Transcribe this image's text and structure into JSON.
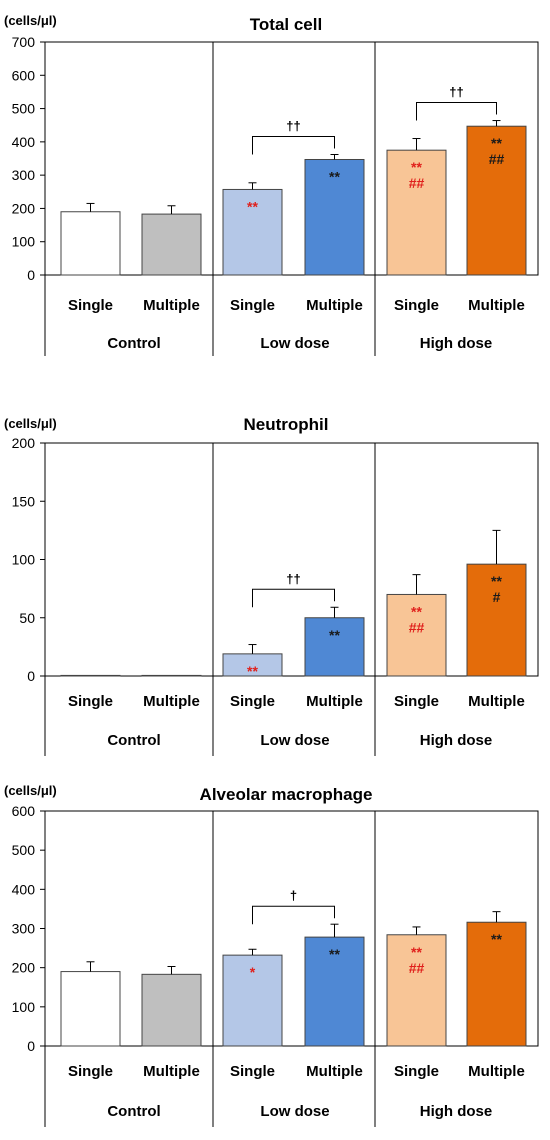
{
  "colors": {
    "control_single": "#ffffff",
    "control_multiple": "#bfbfbf",
    "low_single": "#b4c7e7",
    "low_multiple": "#4f88d4",
    "high_single": "#f8c596",
    "high_multiple": "#e46c0a",
    "sig_red": "#e0201c",
    "sig_black": "#1a1a1a"
  },
  "chart_data": [
    {
      "type": "bar",
      "title": "Total cell",
      "ylabel": "(cells/μl)",
      "ylim": [
        0,
        700
      ],
      "yticks": [
        0,
        100,
        200,
        300,
        400,
        500,
        600,
        700
      ],
      "groups": [
        "Control",
        "Low dose",
        "High dose"
      ],
      "categories": [
        "Single",
        "Multiple",
        "Single",
        "Multiple",
        "Single",
        "Multiple"
      ],
      "values": [
        190,
        183,
        257,
        347,
        375,
        447
      ],
      "errors": [
        25,
        25,
        20,
        15,
        35,
        17
      ],
      "annotations": [
        {
          "bar": 2,
          "lines": [
            {
              "text": "**",
              "color": "red"
            }
          ]
        },
        {
          "bar": 3,
          "lines": [
            {
              "text": "**",
              "color": "black"
            }
          ]
        },
        {
          "bar": 4,
          "lines": [
            {
              "text": "**",
              "color": "red"
            },
            {
              "text": "##",
              "color": "red"
            }
          ]
        },
        {
          "bar": 5,
          "lines": [
            {
              "text": "**",
              "color": "black"
            },
            {
              "text": "##",
              "color": "black"
            }
          ]
        }
      ],
      "brackets": [
        {
          "from": 2,
          "to": 3,
          "label": "††"
        },
        {
          "from": 4,
          "to": 5,
          "label": "††"
        }
      ]
    },
    {
      "type": "bar",
      "title": "Neutrophil",
      "ylabel": "(cells/μl)",
      "ylim": [
        0,
        200
      ],
      "yticks": [
        0,
        50,
        100,
        150,
        200
      ],
      "groups": [
        "Control",
        "Low dose",
        "High dose"
      ],
      "categories": [
        "Single",
        "Multiple",
        "Single",
        "Multiple",
        "Single",
        "Multiple"
      ],
      "values": [
        0.5,
        0.5,
        19,
        50,
        70,
        96
      ],
      "errors": [
        0,
        0,
        8,
        9,
        17,
        29
      ],
      "annotations": [
        {
          "bar": 2,
          "lines": [
            {
              "text": "**",
              "color": "red"
            }
          ]
        },
        {
          "bar": 3,
          "lines": [
            {
              "text": "**",
              "color": "black"
            }
          ]
        },
        {
          "bar": 4,
          "lines": [
            {
              "text": "**",
              "color": "red"
            },
            {
              "text": "##",
              "color": "red"
            }
          ]
        },
        {
          "bar": 5,
          "lines": [
            {
              "text": "**",
              "color": "black"
            },
            {
              "text": "#",
              "color": "black"
            }
          ]
        }
      ],
      "brackets": [
        {
          "from": 2,
          "to": 3,
          "label": "††"
        }
      ]
    },
    {
      "type": "bar",
      "title": "Alveolar macrophage",
      "ylabel": "(cells/μl)",
      "ylim": [
        0,
        600
      ],
      "yticks": [
        0,
        100,
        200,
        300,
        400,
        500,
        600
      ],
      "groups": [
        "Control",
        "Low dose",
        "High dose"
      ],
      "categories": [
        "Single",
        "Multiple",
        "Single",
        "Multiple",
        "Single",
        "Multiple"
      ],
      "values": [
        190,
        183,
        232,
        278,
        284,
        316
      ],
      "errors": [
        25,
        20,
        15,
        33,
        20,
        27
      ],
      "annotations": [
        {
          "bar": 2,
          "lines": [
            {
              "text": "*",
              "color": "red"
            }
          ]
        },
        {
          "bar": 3,
          "lines": [
            {
              "text": "**",
              "color": "black"
            }
          ]
        },
        {
          "bar": 4,
          "lines": [
            {
              "text": "**",
              "color": "red"
            },
            {
              "text": "##",
              "color": "red"
            }
          ]
        },
        {
          "bar": 5,
          "lines": [
            {
              "text": "**",
              "color": "black"
            }
          ]
        }
      ],
      "brackets": [
        {
          "from": 2,
          "to": 3,
          "label": "†"
        }
      ]
    }
  ]
}
